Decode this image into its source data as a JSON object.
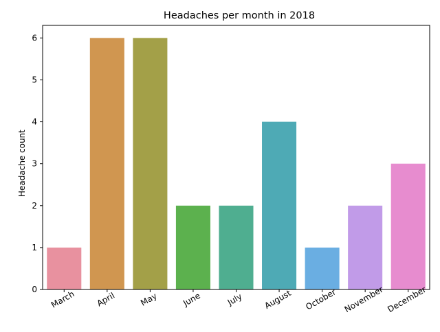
{
  "chart_data": {
    "type": "bar",
    "title": "Headaches per month in 2018",
    "xlabel": "",
    "ylabel": "Headache count",
    "categories": [
      "March",
      "April",
      "May",
      "June",
      "July",
      "August",
      "October",
      "November",
      "December"
    ],
    "values": [
      1,
      6,
      6,
      2,
      2,
      4,
      1,
      2,
      3
    ],
    "colors": [
      "#e8919f",
      "#d09650",
      "#a3a048",
      "#5cb14e",
      "#4fae90",
      "#4eaab5",
      "#6aaee2",
      "#c19be8",
      "#e78ccf"
    ],
    "ylim": [
      0,
      6.3
    ],
    "yticks": [
      0,
      1,
      2,
      3,
      4,
      5,
      6
    ],
    "grid": false,
    "legend": "none"
  }
}
